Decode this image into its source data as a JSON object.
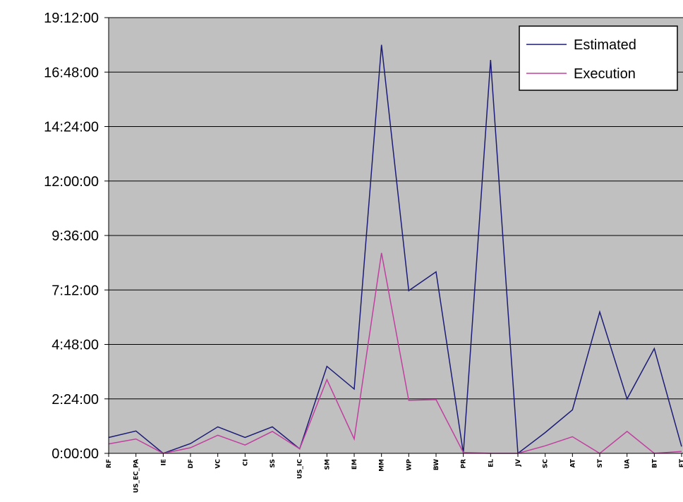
{
  "chart_data": {
    "type": "line",
    "categories": [
      "RF",
      "US_EC_PA",
      "IE",
      "DF",
      "VC",
      "CI",
      "SS",
      "US_IC",
      "SM",
      "EM",
      "MM",
      "WP",
      "BW",
      "PR",
      "EL",
      "JV",
      "SC",
      "AT",
      "ST",
      "UA",
      "BT",
      "ET"
    ],
    "y_tick_labels": [
      "0:00:00",
      "2:24:00",
      "4:48:00",
      "7:12:00",
      "9:36:00",
      "12:00:00",
      "14:24:00",
      "16:48:00",
      "19:12:00"
    ],
    "y_tick_minutes": [
      0,
      144,
      288,
      432,
      576,
      720,
      864,
      1008,
      1152
    ],
    "ylim_minutes": [
      0,
      1152
    ],
    "grid": true,
    "legend_position": "top-right",
    "series": [
      {
        "name": "Estimated",
        "color": "#1c1c78",
        "values": [
          42,
          59,
          0,
          26,
          70,
          42,
          70,
          12,
          230,
          170,
          1080,
          430,
          480,
          0,
          1040,
          0,
          55,
          115,
          374,
          144,
          277,
          18
        ]
      },
      {
        "name": "Execution",
        "color": "#c040a0",
        "values": [
          25,
          38,
          0,
          15,
          48,
          22,
          58,
          12,
          195,
          38,
          530,
          140,
          142,
          2,
          0,
          0,
          20,
          44,
          0,
          58,
          0,
          5
        ]
      }
    ]
  }
}
